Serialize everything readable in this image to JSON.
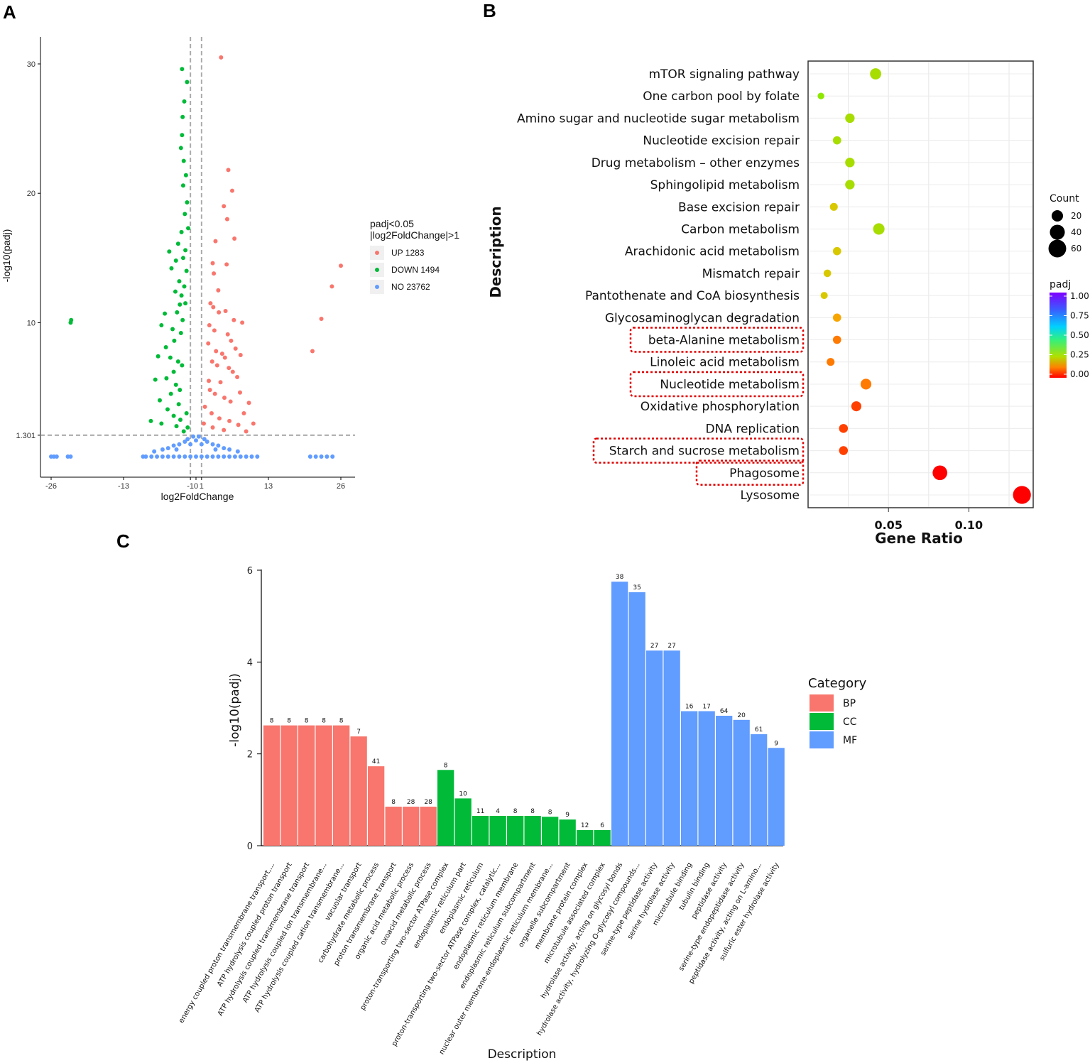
{
  "panels": {
    "a": "A",
    "b": "B",
    "c": "C"
  },
  "chart_data": [
    {
      "id": "A",
      "type": "scatter",
      "xlabel": "log2FoldChange",
      "ylabel": "-log10(padj)",
      "xticks": [
        "-26",
        "-13",
        "-1",
        "0",
        "1",
        "13",
        "26"
      ],
      "xtick_values": [
        -26,
        -13,
        -1,
        0,
        1,
        13,
        26
      ],
      "yticks": [
        "1.301",
        "10",
        "20",
        "30"
      ],
      "ytick_values": [
        1.301,
        10,
        20,
        30
      ],
      "xlim": [
        -27,
        27
      ],
      "ylim": [
        -0.5,
        32
      ],
      "threshold_lines": {
        "x": [
          -1,
          1
        ],
        "y": 1.301
      },
      "legend_title_line1": "padj<0.05",
      "legend_title_line2": "|log2FoldChange|>1",
      "legend": [
        {
          "label": "UP 1283",
          "color": "#f8766d"
        },
        {
          "label": "DOWN 1494",
          "color": "#00ba38"
        },
        {
          "label": "NO 23762",
          "color": "#619cff"
        }
      ],
      "series": [
        {
          "name": "UP 1283",
          "color": "#f8766d",
          "points": [
            [
              4.5,
              30.5
            ],
            [
              5.8,
              21.8
            ],
            [
              6.5,
              20.2
            ],
            [
              5,
              19
            ],
            [
              5.6,
              18
            ],
            [
              6.9,
              16.5
            ],
            [
              3.5,
              16.3
            ],
            [
              3,
              14.6
            ],
            [
              5.5,
              14.5
            ],
            [
              3.2,
              13.8
            ],
            [
              4,
              12.5
            ],
            [
              2.6,
              11.5
            ],
            [
              3.1,
              11.2
            ],
            [
              4.1,
              10.8
            ],
            [
              5.3,
              10.9
            ],
            [
              6.8,
              10.2
            ],
            [
              8.3,
              10
            ],
            [
              2.4,
              9.8
            ],
            [
              3.3,
              9.4
            ],
            [
              5.7,
              9.1
            ],
            [
              6.3,
              8.6
            ],
            [
              7.1,
              8
            ],
            [
              2.2,
              8.4
            ],
            [
              3.6,
              7.8
            ],
            [
              4.7,
              7.6
            ],
            [
              5.2,
              7.3
            ],
            [
              8,
              7.5
            ],
            [
              2.9,
              7
            ],
            [
              3.8,
              6.7
            ],
            [
              5.9,
              6.5
            ],
            [
              6.6,
              6.2
            ],
            [
              7.4,
              5.8
            ],
            [
              2.3,
              5.5
            ],
            [
              4.4,
              5.4
            ],
            [
              7.9,
              4.6
            ],
            [
              9.5,
              3.8
            ],
            [
              2.5,
              4.8
            ],
            [
              3.4,
              4.5
            ],
            [
              5.1,
              4.2
            ],
            [
              6.2,
              3.9
            ],
            [
              8.6,
              3
            ],
            [
              10.3,
              2.2
            ],
            [
              1.6,
              3.5
            ],
            [
              2.8,
              3
            ],
            [
              4.2,
              2.6
            ],
            [
              6,
              2.4
            ],
            [
              7.6,
              2.1
            ],
            [
              1.4,
              2.2
            ],
            [
              3,
              1.9
            ],
            [
              5,
              1.7
            ],
            [
              9,
              1.6
            ],
            [
              24.4,
              12.8
            ],
            [
              26,
              14.4
            ],
            [
              22.5,
              10.3
            ],
            [
              20.9,
              7.8
            ]
          ]
        },
        {
          "name": "DOWN 1494",
          "color": "#00ba38",
          "points": [
            [
              -2.5,
              29.6
            ],
            [
              -1.6,
              28.6
            ],
            [
              -2.1,
              27.1
            ],
            [
              -2.4,
              25.9
            ],
            [
              -2.5,
              24.5
            ],
            [
              -2.7,
              23.5
            ],
            [
              -2.2,
              22.5
            ],
            [
              -1.8,
              21.4
            ],
            [
              -2.3,
              20.6
            ],
            [
              -1.6,
              19.3
            ],
            [
              -2,
              18.4
            ],
            [
              -1.4,
              17.3
            ],
            [
              -2.6,
              17
            ],
            [
              -3.2,
              16.1
            ],
            [
              -1.9,
              15.6
            ],
            [
              -2.3,
              15
            ],
            [
              -4.8,
              15.5
            ],
            [
              -4.4,
              14.2
            ],
            [
              -3.6,
              14.8
            ],
            [
              -1.7,
              14
            ],
            [
              -3,
              13.2
            ],
            [
              -2.1,
              12.8
            ],
            [
              -2.6,
              12.1
            ],
            [
              -3.7,
              12.4
            ],
            [
              -1.9,
              11.5
            ],
            [
              -2.9,
              11.4
            ],
            [
              -3.4,
              10.8
            ],
            [
              -2.4,
              10.2
            ],
            [
              -5.6,
              10.7
            ],
            [
              -6.2,
              9.8
            ],
            [
              -4.2,
              9.5
            ],
            [
              -2.7,
              9.2
            ],
            [
              -3.9,
              8.6
            ],
            [
              -5.4,
              8.1
            ],
            [
              -6.8,
              7.4
            ],
            [
              -4.6,
              7.3
            ],
            [
              -3.2,
              7
            ],
            [
              -2.5,
              6.7
            ],
            [
              -4,
              6.2
            ],
            [
              -5.3,
              5.7
            ],
            [
              -7.3,
              5.6
            ],
            [
              -3.6,
              5.2
            ],
            [
              -2.9,
              4.8
            ],
            [
              -4.5,
              4.5
            ],
            [
              -6.5,
              4
            ],
            [
              -3.1,
              3.7
            ],
            [
              -5.1,
              3.3
            ],
            [
              -8.1,
              2.4
            ],
            [
              -4,
              2.8
            ],
            [
              -2.8,
              2.5
            ],
            [
              -6.2,
              2.2
            ],
            [
              -3.5,
              2
            ],
            [
              -1.7,
              3
            ],
            [
              -1.5,
              1.9
            ],
            [
              -2.2,
              1.6
            ],
            [
              -22.4,
              10.2
            ],
            [
              -22.5,
              10.0
            ]
          ]
        },
        {
          "name": "NO 23762",
          "color": "#619cff",
          "points": [
            [
              -26,
              -0.35
            ],
            [
              -25.5,
              -0.35
            ],
            [
              -25,
              -0.35
            ],
            [
              -23,
              -0.35
            ],
            [
              -22.5,
              -0.35
            ],
            [
              -9.5,
              -0.35
            ],
            [
              -9,
              -0.35
            ],
            [
              -8,
              -0.35
            ],
            [
              -7,
              -0.35
            ],
            [
              -6,
              -0.35
            ],
            [
              -5,
              -0.35
            ],
            [
              -4,
              -0.35
            ],
            [
              -3,
              -0.35
            ],
            [
              -2,
              -0.35
            ],
            [
              -1,
              -0.35
            ],
            [
              0,
              -0.35
            ],
            [
              1,
              -0.35
            ],
            [
              2,
              -0.35
            ],
            [
              3,
              -0.35
            ],
            [
              4,
              -0.35
            ],
            [
              5,
              -0.35
            ],
            [
              6,
              -0.35
            ],
            [
              7,
              -0.35
            ],
            [
              8,
              -0.35
            ],
            [
              9,
              -0.35
            ],
            [
              10,
              -0.35
            ],
            [
              11,
              -0.35
            ],
            [
              20.5,
              -0.35
            ],
            [
              21.5,
              -0.35
            ],
            [
              22.5,
              -0.35
            ],
            [
              23.5,
              -0.35
            ],
            [
              24.5,
              -0.35
            ],
            [
              -5,
              0.3
            ],
            [
              -4,
              0.5
            ],
            [
              -3,
              0.6
            ],
            [
              -2,
              0.8
            ],
            [
              -1.5,
              1.0
            ],
            [
              -0.5,
              1.2
            ],
            [
              0.5,
              1.2
            ],
            [
              1.5,
              1.0
            ],
            [
              2,
              0.8
            ],
            [
              3,
              0.6
            ],
            [
              4,
              0.5
            ],
            [
              5,
              0.3
            ],
            [
              6,
              0.2
            ],
            [
              -6,
              0.2
            ],
            [
              -1,
              0.6
            ],
            [
              0,
              0.9
            ],
            [
              1,
              0.6
            ],
            [
              -3.5,
              0.2
            ],
            [
              3.5,
              0.2
            ],
            [
              -7.5,
              0.05
            ],
            [
              7.5,
              0.05
            ]
          ]
        }
      ]
    },
    {
      "id": "B",
      "type": "scatter",
      "xlabel": "Gene Ratio",
      "ylabel": "Description",
      "xticks": [
        "0.05",
        "0.10"
      ],
      "xtick_values": [
        0.05,
        0.1
      ],
      "xlim": [
        0.0,
        0.14
      ],
      "size_legend_title": "Count",
      "size_legend": [
        {
          "label": "20",
          "value": 20
        },
        {
          "label": "40",
          "value": 40
        },
        {
          "label": "60",
          "value": 60
        }
      ],
      "color_legend_title": "padj",
      "color_legend": [
        "1.00",
        "0.75",
        "0.50",
        "0.25",
        "0.00"
      ],
      "highlighted": [
        "beta-Alanine metabolism",
        "Nucleotide metabolism",
        "Starch and sucrose metabolism",
        "Phagosome"
      ],
      "categories": [
        "mTOR signaling pathway",
        "One carbon pool by folate",
        "Amino sugar and nucleotide sugar metabolism",
        "Nucleotide excision repair",
        "Drug metabolism – other enzymes",
        "Sphingolipid metabolism",
        "Base excision repair",
        "Carbon metabolism",
        "Arachidonic acid metabolism",
        "Mismatch repair",
        "Pantothenate and CoA biosynthesis",
        "Glycosaminoglycan degradation",
        "beta-Alanine metabolism",
        "Linoleic acid metabolism",
        "Nucleotide metabolism",
        "Oxidative phosphorylation",
        "DNA replication",
        "Starch and sucrose metabolism",
        "Phagosome",
        "Lysosome"
      ],
      "gene_ratio": [
        0.042,
        0.008,
        0.026,
        0.018,
        0.026,
        0.026,
        0.016,
        0.044,
        0.018,
        0.012,
        0.01,
        0.018,
        0.018,
        0.014,
        0.036,
        0.03,
        0.022,
        0.022,
        0.082,
        0.133
      ],
      "count": [
        19,
        4,
        12,
        8,
        12,
        12,
        7,
        20,
        8,
        6,
        5,
        8,
        8,
        7,
        17,
        14,
        10,
        10,
        38,
        62
      ],
      "padj": [
        0.27,
        0.3,
        0.26,
        0.25,
        0.26,
        0.26,
        0.24,
        0.26,
        0.24,
        0.23,
        0.2,
        0.17,
        0.13,
        0.1,
        0.11,
        0.07,
        0.05,
        0.05,
        0.01,
        0.0
      ]
    },
    {
      "id": "C",
      "type": "bar",
      "xlabel": "Description",
      "ylabel": "-log10(padj)",
      "yticks": [
        "0",
        "2",
        "4",
        "6"
      ],
      "ytick_values": [
        0,
        2,
        4,
        6
      ],
      "ylim": [
        0,
        6
      ],
      "legend_title": "Category",
      "legend": [
        {
          "label": "BP",
          "color": "#f8766d"
        },
        {
          "label": "CC",
          "color": "#00ba38"
        },
        {
          "label": "MF",
          "color": "#619cff"
        }
      ],
      "categories": [
        "energy coupled proton transmembrane transport,...",
        "ATP hydrolysis coupled proton transport",
        "ATP hydrolysis coupled transmembrane transport",
        "ATP hydrolysis coupled ion transmembrane...",
        "ATP hydrolysis coupled cation transmembrane...",
        "vacuolar transport",
        "carbohydrate metabolic process",
        "proton transmembrane transport",
        "organic acid metabolic process",
        "oxoacid metabolic process",
        "proton-transporting two-sector ATPase complex",
        "endoplasmic reticulum part",
        "endoplasmic reticulum",
        "proton-transporting two-sector ATPase complex, catalytic...",
        "endoplasmic reticulum membrane",
        "endoplasmic reticulum subcompartment",
        "nuclear outer membrane-endoplasmic reticulum membrane...",
        "organelle subcompartment",
        "membrane protein complex",
        "microtubule associated complex",
        "hydrolase activity, acting on glycosyl bonds",
        "hydrolase activity, hydrolyzing O-glycosyl compounds...",
        "serine-type peptidase activity",
        "serine hydrolase activity",
        "microtubule binding",
        "tubulin binding",
        "peptidase activity",
        "serine-type endopeptidase activity",
        "peptidase activity, acting on L-amino...",
        "sulfuric ester hydrolase activity"
      ],
      "values": [
        2.62,
        2.62,
        2.62,
        2.62,
        2.62,
        2.38,
        1.73,
        0.85,
        0.85,
        0.85,
        1.65,
        1.03,
        0.65,
        0.65,
        0.65,
        0.65,
        0.63,
        0.57,
        0.34,
        0.34,
        5.75,
        5.52,
        4.25,
        4.25,
        2.93,
        2.93,
        2.83,
        2.74,
        2.43,
        2.13
      ],
      "bar_labels": [
        "8",
        "8",
        "8",
        "8",
        "8",
        "7",
        "41",
        "8",
        "28",
        "28",
        "8",
        "10",
        "11",
        "4",
        "8",
        "8",
        "8",
        "9",
        "12",
        "6",
        "38",
        "35",
        "27",
        "27",
        "16",
        "17",
        "64",
        "20",
        "61",
        "9"
      ],
      "category_groups": [
        "BP",
        "BP",
        "BP",
        "BP",
        "BP",
        "BP",
        "BP",
        "BP",
        "BP",
        "BP",
        "CC",
        "CC",
        "CC",
        "CC",
        "CC",
        "CC",
        "CC",
        "CC",
        "CC",
        "CC",
        "MF",
        "MF",
        "MF",
        "MF",
        "MF",
        "MF",
        "MF",
        "MF",
        "MF",
        "MF"
      ]
    }
  ]
}
